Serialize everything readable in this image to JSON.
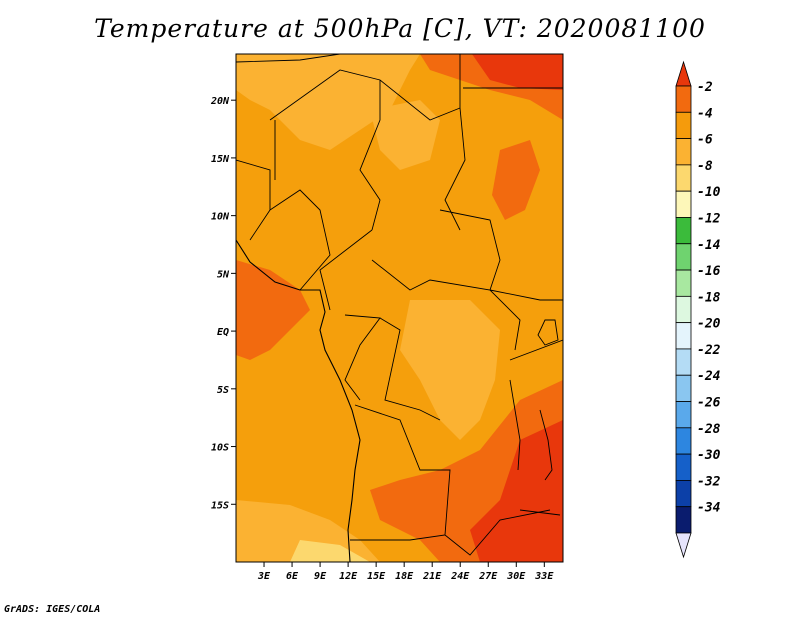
{
  "title": "Temperature at 500hPa [C], VT: 2020081100",
  "credit": "GrADS: IGES/COLA",
  "map": {
    "lon_range": [
      0,
      35
    ],
    "lat_range": [
      -20,
      24
    ],
    "lon_ticks": [
      {
        "value": 3,
        "label": "3E"
      },
      {
        "value": 6,
        "label": "6E"
      },
      {
        "value": 9,
        "label": "9E"
      },
      {
        "value": 12,
        "label": "12E"
      },
      {
        "value": 15,
        "label": "15E"
      },
      {
        "value": 18,
        "label": "18E"
      },
      {
        "value": 21,
        "label": "21E"
      },
      {
        "value": 24,
        "label": "24E"
      },
      {
        "value": 27,
        "label": "27E"
      },
      {
        "value": 30,
        "label": "30E"
      },
      {
        "value": 33,
        "label": "33E"
      }
    ],
    "lat_ticks": [
      {
        "value": 20,
        "label": "20N"
      },
      {
        "value": 15,
        "label": "15N"
      },
      {
        "value": 10,
        "label": "10N"
      },
      {
        "value": 5,
        "label": "5N"
      },
      {
        "value": 0,
        "label": "EQ"
      },
      {
        "value": -5,
        "label": "5S"
      },
      {
        "value": -10,
        "label": "10S"
      },
      {
        "value": -15,
        "label": "15S"
      }
    ]
  },
  "colorbar": {
    "labels": [
      "-2",
      "-4",
      "-6",
      "-8",
      "-10",
      "-12",
      "-14",
      "-16",
      "-18",
      "-20",
      "-22",
      "-24",
      "-26",
      "-28",
      "-30",
      "-32",
      "-34"
    ],
    "colors": [
      "#e8370c",
      "#f26a0f",
      "#f59b0c",
      "#fbb232",
      "#fcd86e",
      "#fdf7b9",
      "#3bbb3b",
      "#6fd36f",
      "#a8e8a0",
      "#ddf8e0",
      "#e4f4fc",
      "#b4dcf5",
      "#8ac6f0",
      "#5aa9eb",
      "#2d86e0",
      "#1560c9",
      "#0c40a8",
      "#0a1c6e",
      "#e6e4fc"
    ]
  },
  "field_colors": {
    "base": "#f59f0c",
    "warm": "#f26a0f",
    "warmer": "#e8370c",
    "cool": "#fbb232",
    "cooler": "#fcd86e"
  }
}
